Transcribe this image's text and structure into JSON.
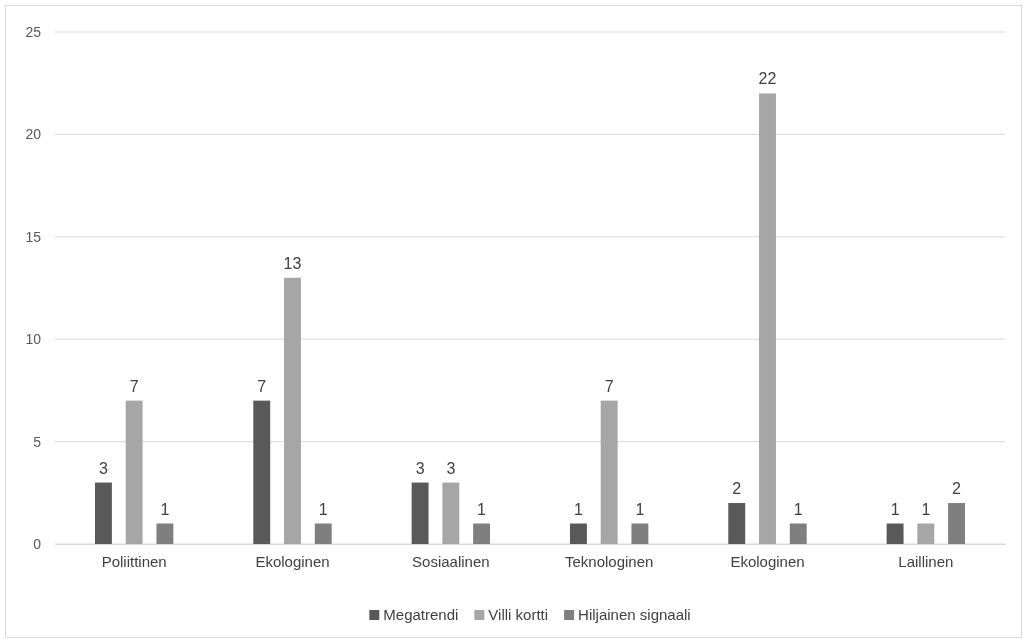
{
  "chart_data": {
    "type": "bar",
    "categories": [
      "Poliittinen",
      "Ekologinen",
      "Sosiaalinen",
      "Teknologinen",
      "Ekologinen",
      "Laillinen"
    ],
    "series": [
      {
        "name": "Megatrendi",
        "color": "#595959",
        "values": [
          3,
          7,
          3,
          1,
          2,
          1
        ]
      },
      {
        "name": "Villi kortti",
        "color": "#a6a6a6",
        "values": [
          7,
          13,
          3,
          7,
          22,
          1
        ]
      },
      {
        "name": "Hiljainen signaali",
        "color": "#7f7f7f",
        "values": [
          1,
          1,
          1,
          1,
          1,
          2
        ]
      }
    ],
    "ylim": [
      0,
      25
    ],
    "yticks": [
      0,
      5,
      10,
      15,
      20,
      25
    ],
    "grid": "y",
    "legend": "bottom",
    "data_labels": true
  }
}
